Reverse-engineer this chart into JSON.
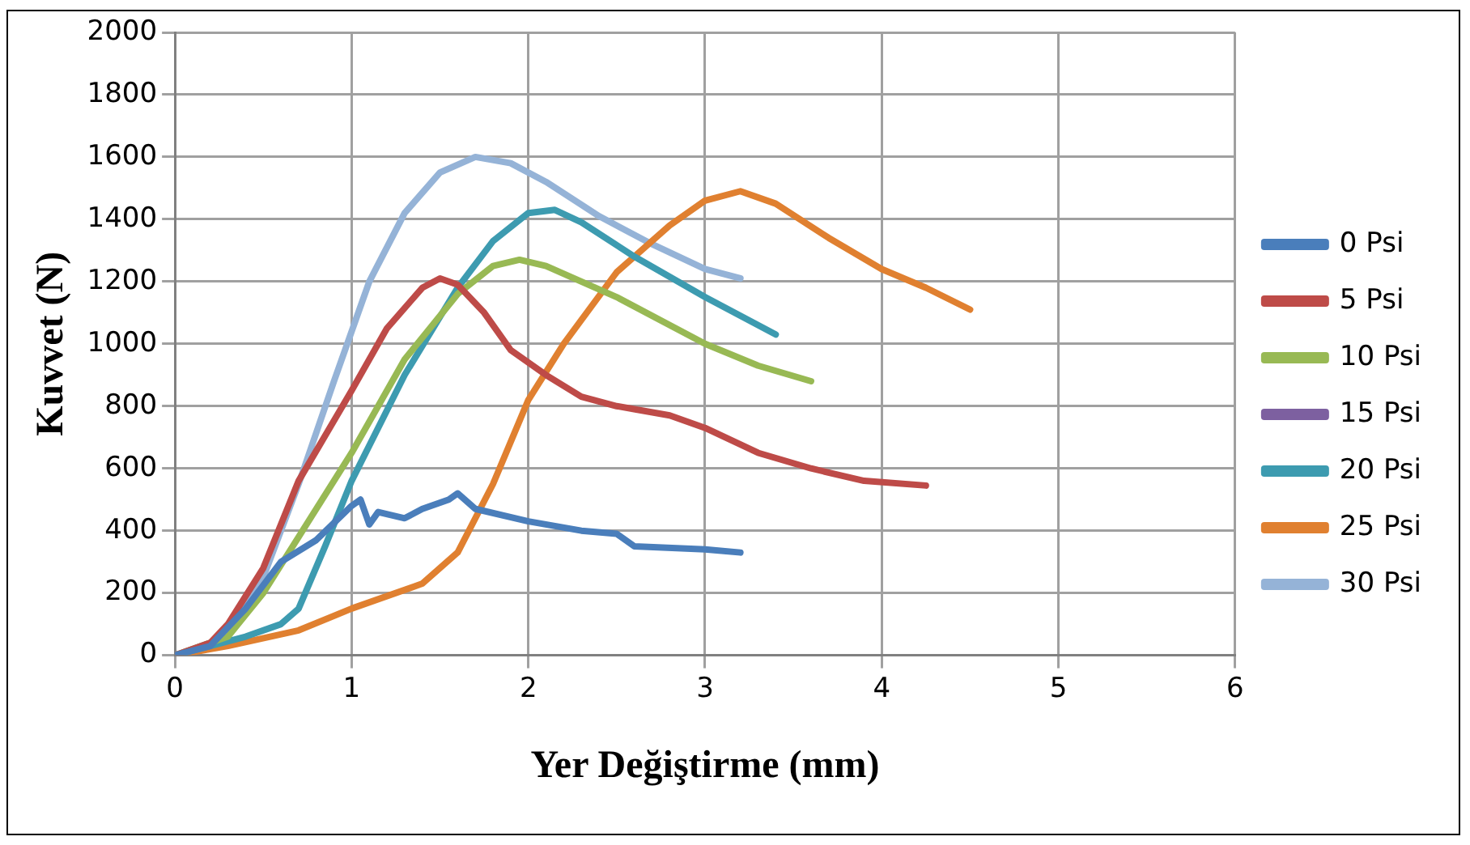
{
  "chart_data": {
    "type": "line",
    "xlabel": "Yer Değiştirme (mm)",
    "ylabel": "Kuvvet (N)",
    "xlim": [
      0,
      6
    ],
    "xticks": [
      0,
      1,
      2,
      3,
      4,
      5,
      6
    ],
    "ylim": [
      0,
      2000
    ],
    "yticks": [
      0,
      200,
      400,
      600,
      800,
      1000,
      1200,
      1400,
      1600,
      1800,
      2000
    ],
    "grid": true,
    "legend": "right",
    "marker": "none",
    "line_style": "solid",
    "series": [
      {
        "name": "0 Psi",
        "color": "#4a7ebb",
        "x": [
          0,
          0.2,
          0.4,
          0.6,
          0.8,
          1.0,
          1.05,
          1.1,
          1.15,
          1.3,
          1.4,
          1.55,
          1.6,
          1.7,
          2.0,
          2.3,
          2.5,
          2.6,
          3.0,
          3.2
        ],
        "values": [
          0,
          30,
          150,
          300,
          370,
          480,
          500,
          420,
          460,
          440,
          470,
          500,
          520,
          470,
          430,
          400,
          390,
          350,
          340,
          330
        ]
      },
      {
        "name": "5 Psi",
        "color": "#be4b48",
        "x": [
          0,
          0.2,
          0.3,
          0.5,
          0.7,
          1.0,
          1.2,
          1.4,
          1.5,
          1.6,
          1.75,
          1.9,
          2.1,
          2.3,
          2.5,
          2.8,
          3.0,
          3.3,
          3.6,
          3.9,
          4.25
        ],
        "values": [
          0,
          40,
          100,
          280,
          560,
          850,
          1050,
          1180,
          1210,
          1190,
          1100,
          980,
          900,
          830,
          800,
          770,
          730,
          650,
          600,
          560,
          545
        ]
      },
      {
        "name": "10 Psi",
        "color": "#98b954",
        "x": [
          0,
          0.3,
          0.5,
          0.7,
          1.0,
          1.3,
          1.6,
          1.8,
          1.95,
          2.1,
          2.5,
          3.0,
          3.3,
          3.6
        ],
        "values": [
          0,
          60,
          200,
          380,
          650,
          950,
          1160,
          1250,
          1270,
          1250,
          1150,
          1000,
          930,
          880
        ]
      },
      {
        "name": "15 Psi",
        "color": "#7d60a0"
      },
      {
        "name": "20 Psi",
        "color": "#3d9bb0",
        "x": [
          0,
          0.4,
          0.6,
          0.7,
          0.85,
          1.0,
          1.3,
          1.6,
          1.8,
          2.0,
          2.15,
          2.3,
          2.6,
          3.0,
          3.4
        ],
        "values": [
          0,
          60,
          100,
          150,
          350,
          560,
          900,
          1180,
          1330,
          1420,
          1430,
          1390,
          1280,
          1150,
          1030
        ]
      },
      {
        "name": "25 Psi",
        "color": "#e08030",
        "x": [
          0,
          0.3,
          0.7,
          1.0,
          1.4,
          1.6,
          1.8,
          2.0,
          2.2,
          2.5,
          2.8,
          3.0,
          3.2,
          3.4,
          3.7,
          4.0,
          4.25,
          4.5
        ],
        "values": [
          0,
          30,
          80,
          150,
          230,
          330,
          550,
          820,
          1000,
          1230,
          1380,
          1460,
          1490,
          1450,
          1340,
          1240,
          1180,
          1110
        ]
      },
      {
        "name": "30 Psi",
        "color": "#95b3d7",
        "x": [
          0,
          0.3,
          0.5,
          0.7,
          0.9,
          1.1,
          1.3,
          1.5,
          1.7,
          1.9,
          2.1,
          2.4,
          2.7,
          3.0,
          3.2
        ],
        "values": [
          0,
          60,
          250,
          550,
          880,
          1200,
          1420,
          1550,
          1600,
          1580,
          1520,
          1410,
          1320,
          1240,
          1210
        ]
      }
    ]
  }
}
